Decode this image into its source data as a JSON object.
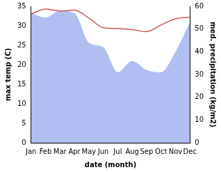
{
  "chart_data": {
    "type": "line",
    "x_label": "date (month)",
    "y_label": "max temp (C)",
    "y2_label": "med. precipitation (kg/m2)",
    "categories": [
      "Jan",
      "Feb",
      "Mar",
      "Apr",
      "May",
      "Jun",
      "Jul",
      "Aug",
      "Sep",
      "Oct",
      "Nov",
      "Dec"
    ],
    "series": [
      {
        "name": "med. precipitation (kg/m2)",
        "type": "area",
        "axis": "y2",
        "color": "#b0bef2",
        "values": [
          57,
          55,
          58,
          57,
          44,
          42,
          31,
          36,
          32,
          31,
          40,
          53
        ]
      },
      {
        "name": "max temp (C)",
        "type": "line",
        "color": "#cc5555",
        "values": [
          33,
          34.3,
          33.8,
          34,
          32,
          29.5,
          29.3,
          29,
          28.5,
          30.2,
          31.8,
          32.2
        ]
      }
    ],
    "ylim": [
      0,
      35
    ],
    "yticks": [
      0,
      5,
      10,
      15,
      20,
      25,
      30,
      35
    ],
    "y2lim": [
      0,
      60
    ],
    "y2ticks": [
      0,
      10,
      20,
      30,
      40,
      50,
      60
    ],
    "grid": false
  }
}
